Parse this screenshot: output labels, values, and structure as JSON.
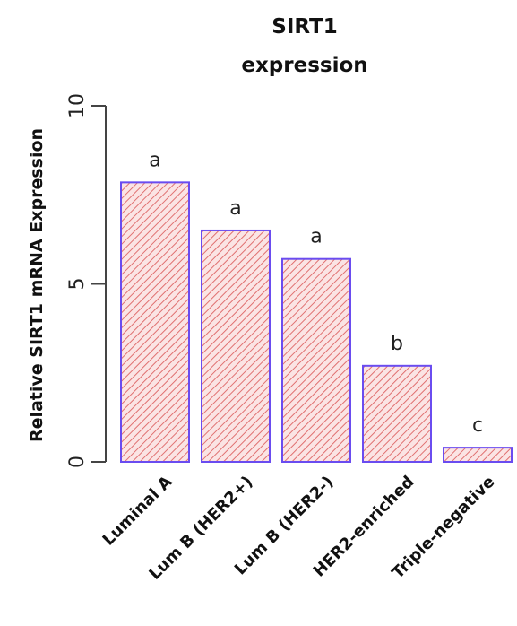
{
  "chart_data": {
    "type": "bar",
    "title_line1": "SIRT1",
    "title_line2": "expression",
    "xlabel": "",
    "ylabel": "Relative SIRT1 mRNA Expression",
    "ylim": [
      0,
      10
    ],
    "yticks": [
      "0",
      "5",
      "10"
    ],
    "categories": [
      "Luminal A",
      "Lum B (HER2+)",
      "Lum B (HER2-)",
      "HER2-enriched",
      "Triple-negative"
    ],
    "values": [
      7.85,
      6.5,
      5.7,
      2.7,
      0.4
    ],
    "significance_labels": [
      "a",
      "a",
      "a",
      "b",
      "c"
    ],
    "colors": {
      "fill_hatch": "#e07070",
      "fill_bg": "#fbe4e4",
      "bar_border": "#6a4cf0",
      "axis": "#444444"
    }
  }
}
